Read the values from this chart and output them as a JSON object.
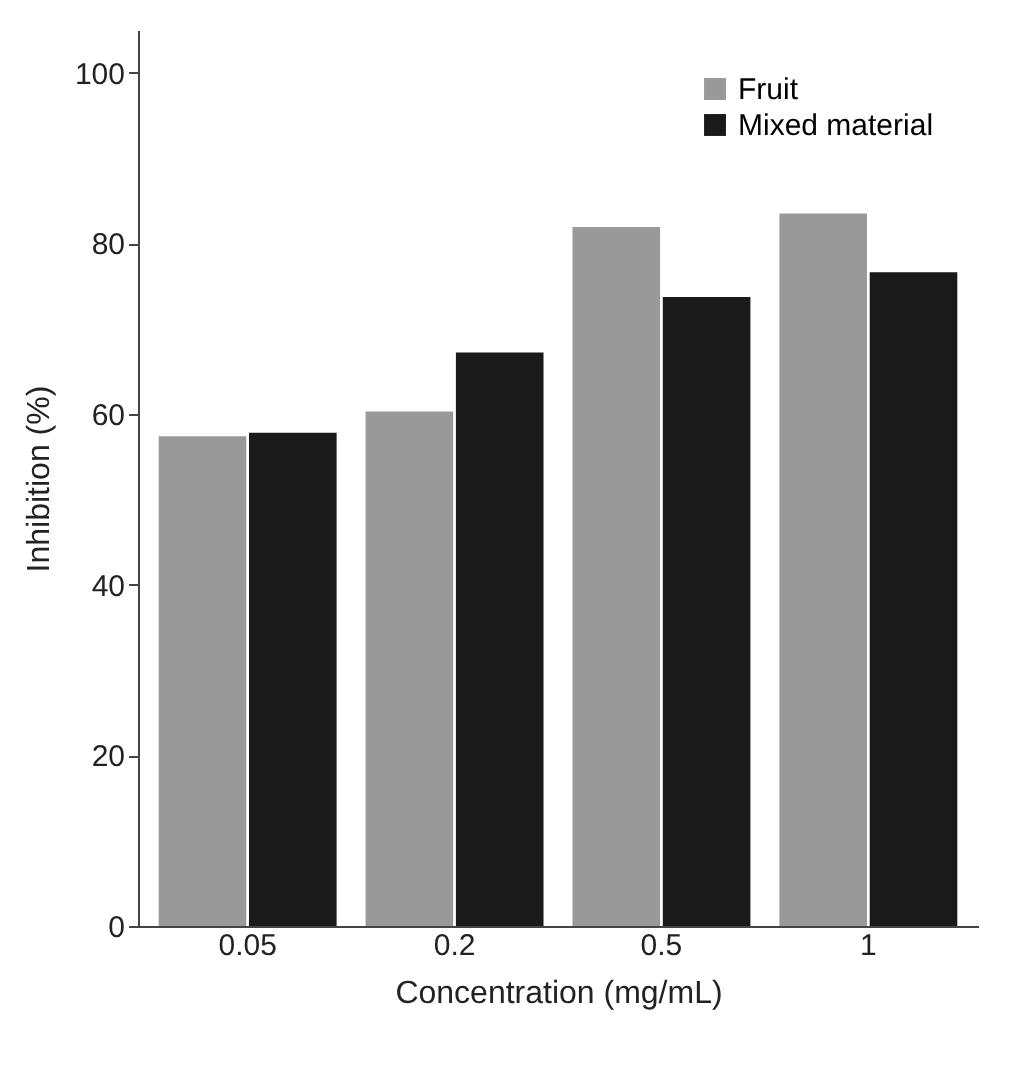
{
  "chart_data": {
    "type": "bar",
    "xlabel": "Concentration (mg/mL)",
    "ylabel": "Inhibition (%)",
    "categories": [
      "0.05",
      "0.2",
      "0.5",
      "1"
    ],
    "series": [
      {
        "name": "Fruit",
        "color": "#999999",
        "values": [
          57.4,
          60.3,
          81.9,
          83.5
        ]
      },
      {
        "name": "Mixed material",
        "color": "#1a1a1a",
        "values": [
          57.8,
          67.2,
          73.7,
          76.6
        ]
      }
    ],
    "ylim": [
      0,
      105
    ],
    "yticks": [
      0,
      20,
      40,
      60,
      80,
      100
    ],
    "grid": false,
    "legend": "top right"
  }
}
